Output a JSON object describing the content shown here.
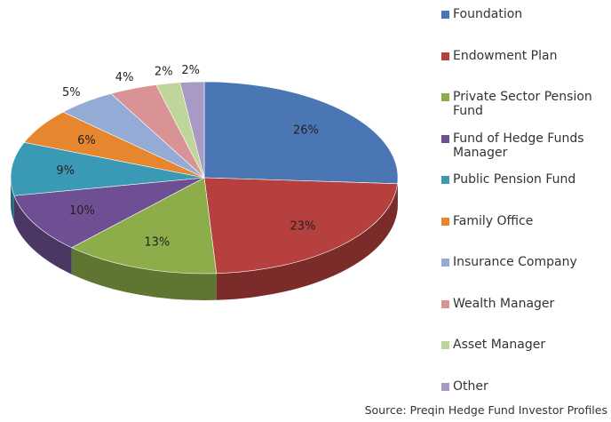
{
  "chart_data": {
    "type": "pie3d",
    "categories": [
      "Foundation",
      "Endowment Plan",
      "Private Sector Pension Fund",
      "Fund of Hedge Funds Manager",
      "Public Pension Fund",
      "Family Office",
      "Insurance Company",
      "Wealth Manager",
      "Asset Manager",
      "Other"
    ],
    "values": [
      26,
      23,
      13,
      10,
      9,
      6,
      5,
      4,
      2,
      2
    ],
    "value_labels": [
      "26%",
      "23%",
      "13%",
      "10%",
      "9%",
      "6%",
      "5%",
      "4%",
      "2%",
      "2%"
    ],
    "colors": [
      "#4a77b4",
      "#b5403e",
      "#8cad4a",
      "#6f4f93",
      "#3a9ab5",
      "#e6862e",
      "#93abd5",
      "#d99394",
      "#bfd69a",
      "#a99ac5"
    ],
    "legend": "right",
    "source": "Source: Preqin Hedge Fund Investor Profiles"
  }
}
